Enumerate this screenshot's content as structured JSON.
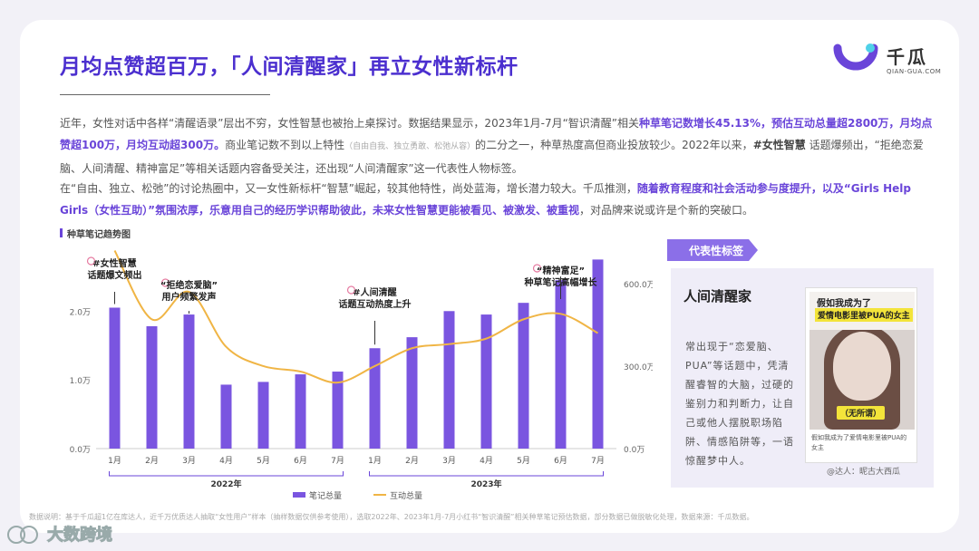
{
  "title": "月均点赞超百万，「人间清醒家」再立女性新标杆",
  "logo": {
    "cn": "千瓜",
    "en": "QIAN-GUA.COM"
  },
  "paragraph1": {
    "s1": "近年，女性对话中各样“清醒语录”层出不穷，女性智慧也被抬上桌探讨。数据结果显示，2023年1月-7月“智识清醒”相关",
    "h1": "种草笔记数增长45.13%，预估互动总量超2800万，月均点赞超100万，月均互动超300万。",
    "s2": "商业笔记数不到以上特性",
    "small": "（自由自我、独立勇敢、松弛从容）",
    "s3": "的二分之一，种草热度高但商业投放较少。2022年以来，",
    "b1": "#女性智慧",
    "s4": " 话题爆频出，“拒绝恋爱脑、人间清醒、精神富足”等相关话题内容备受关注，还出现“人间清醒家”这一代表性人物标签。"
  },
  "paragraph2": {
    "s1": "在“自由、独立、松弛”的讨论热圈中，又一女性新标杆“智慧”崛起，较其他特性，尚处蓝海，增长潜力较大。千瓜推测，",
    "h1": "随着教育程度和社会活动参与度提升，以及“Girls Help Girls（女性互助）”氛围浓厚，乐意用自己的经历学识帮助彼此，未来女性智慧更能被看见、被激发、被重视",
    "s2": "，对品牌来说或许是个新的突破口。"
  },
  "chart_title": "种草笔记趋势图",
  "chart_data": {
    "type": "bar",
    "categories": [
      "1月",
      "2月",
      "3月",
      "4月",
      "5月",
      "6月",
      "7月",
      "1月",
      "2月",
      "3月",
      "4月",
      "5月",
      "6月",
      "7月"
    ],
    "year_groups": [
      {
        "label": "2022年",
        "start": 0,
        "end": 6
      },
      {
        "label": "2023年",
        "start": 7,
        "end": 13
      }
    ],
    "series": [
      {
        "name": "笔记总量",
        "type": "bar",
        "axis": "left",
        "color": "#7a55e0",
        "values": [
          2.05,
          1.78,
          1.95,
          0.93,
          0.97,
          1.08,
          1.12,
          1.46,
          1.62,
          2.0,
          1.95,
          2.12,
          2.45,
          2.75
        ]
      },
      {
        "name": "互动总量",
        "type": "line",
        "axis": "right",
        "color": "#f0b545",
        "values": [
          720,
          470,
          570,
          370,
          300,
          280,
          240,
          300,
          365,
          380,
          400,
          470,
          490,
          420
        ]
      }
    ],
    "y_left": {
      "ticks": [
        "0.0万",
        "1.0万",
        "2.0万"
      ],
      "min": 0,
      "max": 2.9
    },
    "y_right": {
      "ticks": [
        "0.0万",
        "300.0万",
        "600.0万"
      ],
      "min": 0,
      "max": 725
    },
    "annotations": [
      {
        "index": 0,
        "lines": [
          "#女性智慧",
          "话题爆文频出"
        ]
      },
      {
        "index": 2,
        "lines": [
          "“拒绝恋爱脑”",
          "用户频繁发声"
        ]
      },
      {
        "index": 7,
        "lines": [
          "#人间清醒",
          "话题互动热度上升"
        ]
      },
      {
        "index": 12,
        "lines": [
          "“精神富足”",
          "种草笔记高幅增长"
        ]
      }
    ]
  },
  "legend": {
    "bar": "笔记总量",
    "line": "互动总量"
  },
  "panel": {
    "tag": "代表性标签",
    "name": "人间清醒家",
    "desc": "常出现于“恋爱脑、PUA”等话题中，凭清醒睿智的大脑，过硬的鉴别力和判断力，让自己或他人摆脱职场陷阱、情感陷阱等，一语惊醒梦中人。",
    "photo_line1": "假如我成为了",
    "photo_line2": "爱情电影里被PUA的女主",
    "photo_tag": "（无所谓）",
    "photo_caption": "假如我成为了爱情电影里被PUA的女主",
    "author": "@达人：昵古大西瓜"
  },
  "footer": "数据说明：基于千瓜超1亿在库达人，近千万优质达人抽取“女性用户”样本（抽样数据仅供参考使用），选取2022年、2023年1月-7月小红书“智识清醒”相关种草笔记预估数据，部分数据已做脱敏化处理，数据来源：千瓜数据。",
  "brand": "大数跨境"
}
